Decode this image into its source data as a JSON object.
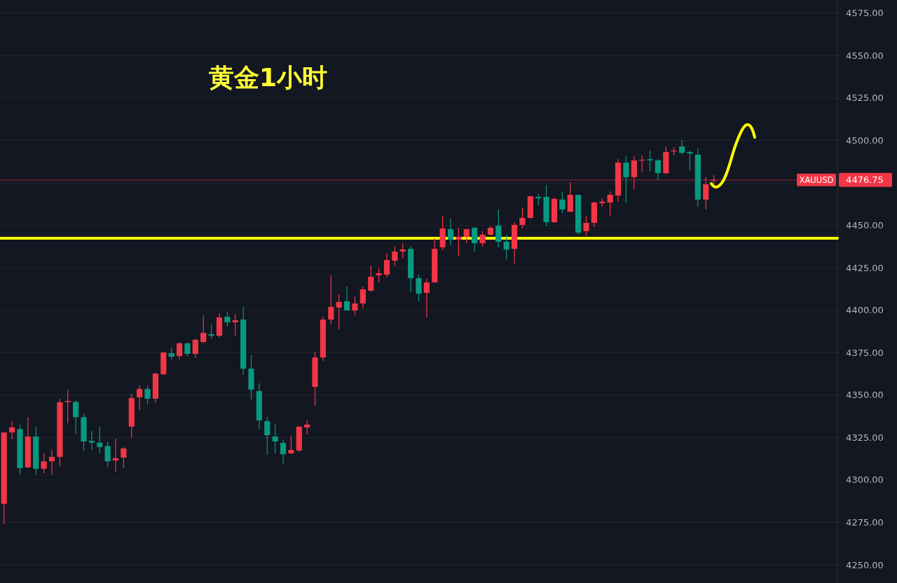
{
  "chart_data": {
    "type": "candlestick",
    "title": "黄金1小时",
    "categories": [
      null,
      null,
      null,
      null,
      null,
      null,
      null,
      null,
      null,
      null,
      null,
      null,
      null,
      null,
      null,
      null,
      null,
      null,
      null,
      null,
      null,
      null,
      null,
      null,
      null,
      null,
      null,
      null,
      null,
      null,
      null,
      null,
      null,
      null,
      null,
      null,
      null,
      null,
      null,
      null,
      null,
      null,
      null,
      null,
      null,
      null,
      null,
      null,
      null,
      null,
      null,
      null,
      null,
      null,
      null,
      null,
      null,
      null,
      null,
      null,
      null,
      null,
      null,
      null,
      null,
      null,
      null,
      null,
      null,
      null,
      null,
      null,
      null,
      null,
      null,
      null,
      null,
      null,
      null,
      null,
      null,
      null,
      null,
      null,
      null,
      null,
      null,
      null,
      null,
      null,
      null,
      null,
      null,
      null,
      null,
      null,
      null,
      null,
      null,
      null,
      null,
      null,
      null,
      null,
      null
    ],
    "ohlc": [
      [
        4286,
        4328,
        4274,
        4328
      ],
      [
        4328,
        4334.7,
        4324,
        4331
      ],
      [
        4330,
        4332.6,
        4303,
        4307
      ],
      [
        4307.4,
        4337,
        4307,
        4325.6
      ],
      [
        4325.6,
        4331.3,
        4303,
        4306.6
      ],
      [
        4306.6,
        4316,
        4304,
        4311
      ],
      [
        4311,
        4317.7,
        4303,
        4313.6
      ],
      [
        4313.6,
        4347.9,
        4308,
        4345.8
      ],
      [
        4345.8,
        4353.2,
        4333.4,
        4346.5
      ],
      [
        4346,
        4347,
        4327.2,
        4337
      ],
      [
        4337,
        4339,
        4317.3,
        4322.7
      ],
      [
        4323.1,
        4329,
        4317.7,
        4322
      ],
      [
        4322,
        4331.3,
        4315.7,
        4319.4
      ],
      [
        4320,
        4322.7,
        4307.4,
        4311
      ],
      [
        4311.5,
        4324.3,
        4304.9,
        4312.8
      ],
      [
        4313.2,
        4319.4,
        4307,
        4318.6
      ],
      [
        4331.4,
        4350.8,
        4324.7,
        4348.3
      ],
      [
        4348.7,
        4355.7,
        4341.3,
        4353.6
      ],
      [
        4353.6,
        4355.7,
        4344.6,
        4347.9
      ],
      [
        4347.9,
        4363.1,
        4345.4,
        4362.7
      ],
      [
        4362.3,
        4375.5,
        4361.9,
        4375.1
      ],
      [
        4374.7,
        4378,
        4371,
        4372.6
      ],
      [
        4373,
        4381.3,
        4371,
        4380.5
      ],
      [
        4380.5,
        4381.3,
        4373,
        4374.3
      ],
      [
        4374.3,
        4383.4,
        4371.8,
        4382.6
      ],
      [
        4381.3,
        4397,
        4380.5,
        4386.7
      ],
      [
        4385.9,
        4391.6,
        4383.4,
        4385
      ],
      [
        4385,
        4398.3,
        4383.8,
        4395.8
      ],
      [
        4396.2,
        4399.1,
        4390.4,
        4392.9
      ],
      [
        4392.9,
        4397.8,
        4385,
        4394.1
      ],
      [
        4394.5,
        4402,
        4361.9,
        4365.6
      ],
      [
        4365.6,
        4373.5,
        4347.5,
        4353.2
      ],
      [
        4352.4,
        4357,
        4330.1,
        4335.1
      ],
      [
        4334.7,
        4337.1,
        4314.8,
        4326.4
      ],
      [
        4325.6,
        4333,
        4315.7,
        4322.7
      ],
      [
        4321.9,
        4323.5,
        4309.5,
        4315.2
      ],
      [
        4315.7,
        4326,
        4315.2,
        4317.7
      ],
      [
        4317.3,
        4331.8,
        4316.5,
        4331.4
      ],
      [
        4331,
        4335.1,
        4326.8,
        4332.6
      ],
      [
        4354.9,
        4375.5,
        4343.7,
        4372.2
      ],
      [
        4372.2,
        4396.2,
        4370.2,
        4394.5
      ],
      [
        4394.5,
        4420.6,
        4391.6,
        4402
      ],
      [
        4401.6,
        4409.4,
        4388.8,
        4404.9
      ],
      [
        4405.3,
        4413.9,
        4399.9,
        4399.9
      ],
      [
        4399.9,
        4408.2,
        4397,
        4404
      ],
      [
        4404,
        4413.9,
        4401.1,
        4412.3
      ],
      [
        4411.5,
        4426.3,
        4411,
        4419.7
      ],
      [
        4420.6,
        4424.7,
        4416.4,
        4421.8
      ],
      [
        4421,
        4433.8,
        4419.3,
        4429.6
      ],
      [
        4429.2,
        4437.9,
        4425.9,
        4434.6
      ],
      [
        4434.6,
        4439.5,
        4430.5,
        4435.8
      ],
      [
        4436.2,
        4437.5,
        4410.6,
        4418.9
      ],
      [
        4418.9,
        4421,
        4405.3,
        4409.8
      ],
      [
        4410.2,
        4418.5,
        4395.8,
        4416.4
      ],
      [
        4416.4,
        4442.4,
        4416.4,
        4436.2
      ],
      [
        4437.1,
        4455.7,
        4435.4,
        4448.2
      ],
      [
        4447.8,
        4454,
        4438.3,
        4441.6
      ],
      [
        4441.6,
        4448.6,
        4432.1,
        4443.3
      ],
      [
        4443.3,
        4447.8,
        4439.5,
        4447.8
      ],
      [
        4448.6,
        4449.1,
        4434.6,
        4439.5
      ],
      [
        4439.5,
        4446.6,
        4437.5,
        4444.5
      ],
      [
        4444.5,
        4449.5,
        4444.1,
        4448.6
      ],
      [
        4449.9,
        4459.4,
        4437.1,
        4440.4
      ],
      [
        4440.4,
        4444.5,
        4430,
        4435.8
      ],
      [
        4436.2,
        4451.9,
        4427.6,
        4450.3
      ],
      [
        4450.3,
        4460.6,
        4448.2,
        4454.4
      ],
      [
        4454.4,
        4467.2,
        4454,
        4467.2
      ],
      [
        4466.8,
        4468.5,
        4461.8,
        4466
      ],
      [
        4466.8,
        4473.8,
        4449.5,
        4451.9
      ],
      [
        4451.9,
        4466.4,
        4451.5,
        4465.6
      ],
      [
        4465.2,
        4469.7,
        4457.3,
        4459.4
      ],
      [
        4458.1,
        4475.5,
        4457.7,
        4468
      ],
      [
        4468,
        4468,
        4444.5,
        4445.7
      ],
      [
        4446.6,
        4455.7,
        4443.7,
        4451.5
      ],
      [
        4451.5,
        4463.9,
        4449,
        4463.5
      ],
      [
        4463.1,
        4466,
        4461,
        4464
      ],
      [
        4463.5,
        4470.1,
        4455.7,
        4468
      ],
      [
        4467.6,
        4489.1,
        4463.9,
        4487
      ],
      [
        4487,
        4490.8,
        4463.1,
        4478.4
      ],
      [
        4478.4,
        4490.8,
        4471.3,
        4488.3
      ],
      [
        4488.3,
        4491.2,
        4481.7,
        4488.7
      ],
      [
        4489,
        4494.1,
        4481.7,
        4488.3
      ],
      [
        4488.3,
        4489.1,
        4476.7,
        4480.8
      ],
      [
        4480.8,
        4496.5,
        4480,
        4493.2
      ],
      [
        4493.7,
        4496.1,
        4491.2,
        4494.1
      ],
      [
        4496.5,
        4500.3,
        4492,
        4492.8
      ],
      [
        4493.2,
        4494.1,
        4482.5,
        4492.4
      ],
      [
        4491.6,
        4495.3,
        4461,
        4465.2
      ],
      [
        4465.2,
        4478.4,
        4459.4,
        4474.2
      ],
      [
        4476.3,
        4479.6,
        4471.8,
        4476.75
      ],
      null,
      null,
      null,
      null,
      null,
      null,
      null,
      null,
      null,
      null,
      null,
      null,
      null,
      null,
      null
    ],
    "ylim": [
      4239.3,
      4582.8
    ],
    "yticks": [
      {
        "value": 4250,
        "label": "4250.00"
      },
      {
        "value": 4275,
        "label": "4275.00"
      },
      {
        "value": 4300,
        "label": "4300.00"
      },
      {
        "value": 4325,
        "label": "4325.00"
      },
      {
        "value": 4350,
        "label": "4350.00"
      },
      {
        "value": 4375,
        "label": "4375.00"
      },
      {
        "value": 4400,
        "label": "4400.00"
      },
      {
        "value": 4425,
        "label": "4425.00"
      },
      {
        "value": 4450,
        "label": "4450.00"
      },
      {
        "value": 4475,
        "label": null
      },
      {
        "value": 4500,
        "label": "4500.00"
      },
      {
        "value": 4525,
        "label": "4525.00"
      },
      {
        "value": 4550,
        "label": "4550.00"
      },
      {
        "value": 4575,
        "label": "4575.00"
      }
    ],
    "grid": "y",
    "tick_labels": "y",
    "annotations": [
      "4476.75"
    ],
    "ref_lines": [
      {
        "axis": "y",
        "value": 4476.75,
        "label": "XAUUSD",
        "color": "#f23645",
        "line_style": "dotted"
      },
      {
        "axis": "y",
        "value": 4442.4,
        "color": "#ffff00",
        "line_style": "solid"
      }
    ]
  }
}
